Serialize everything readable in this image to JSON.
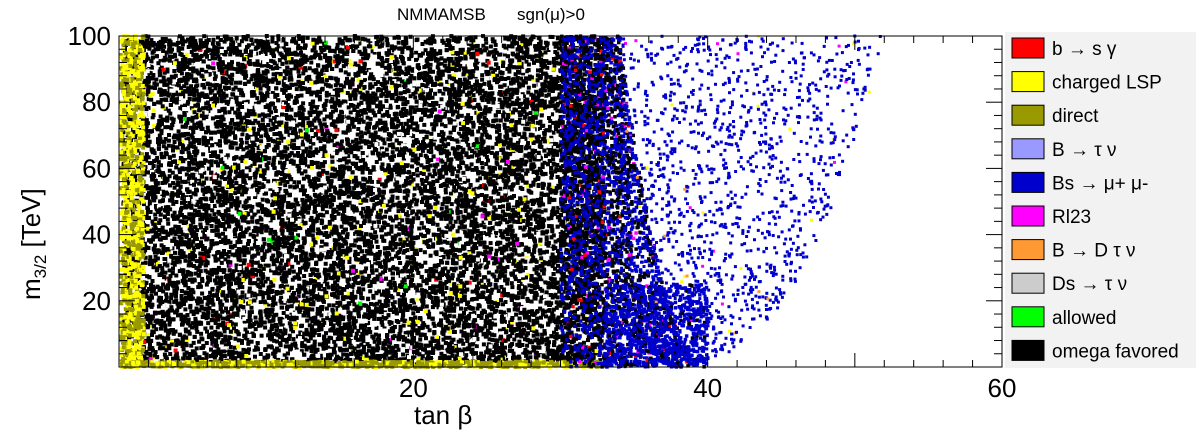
{
  "chart_data": {
    "type": "scatter",
    "title": "NMMAMSB",
    "subtitle": "sgn(μ)>0",
    "xlabel": "tan β",
    "ylabel": "m3/2 [TeV]",
    "xlim": [
      0,
      60
    ],
    "ylim": [
      0,
      100
    ],
    "x_ticks": [
      20,
      40,
      60
    ],
    "y_ticks": [
      20,
      40,
      60,
      80,
      100
    ],
    "grid": false,
    "legend_position": "right",
    "legend": [
      {
        "name": "b → s γ",
        "color": "#ff0000"
      },
      {
        "name": "charged LSP",
        "color": "#ffff00"
      },
      {
        "name": "direct",
        "color": "#999900"
      },
      {
        "name": "B → τ ν",
        "color": "#9999ff"
      },
      {
        "name": "Bs → μ+ μ-",
        "color": "#0000cc"
      },
      {
        "name": "Rl23",
        "color": "#ff00ff"
      },
      {
        "name": "B → D τ ν",
        "color": "#ff9933"
      },
      {
        "name": "Ds → τ ν",
        "color": "#cccccc"
      },
      {
        "name": "allowed",
        "color": "#00ff00"
      },
      {
        "name": "omega favored",
        "color": "#000000"
      }
    ],
    "regions": {
      "dense_black_xmax": 33,
      "blue_edge_x_at_y0": 40,
      "blue_edge_x_at_y100": 34,
      "sparse_scatter_xmax": 52
    }
  }
}
